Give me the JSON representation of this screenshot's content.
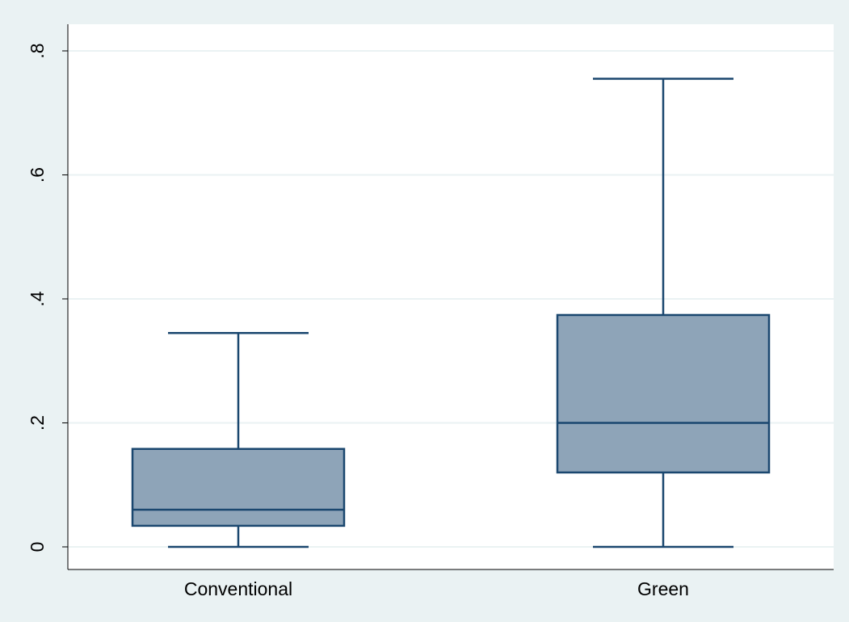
{
  "chart_data": {
    "type": "box",
    "title": "",
    "xlabel": "",
    "ylabel": "",
    "ylim": [
      0,
      0.84
    ],
    "y_ticks": [
      0,
      0.2,
      0.4,
      0.6,
      0.8
    ],
    "y_tick_labels": [
      "0",
      ".2",
      ".4",
      ".6",
      ".8"
    ],
    "categories": [
      "Conventional",
      "Green"
    ],
    "boxes": [
      {
        "category": "Conventional",
        "whisker_low": 0.0,
        "q1": 0.034,
        "median": 0.06,
        "q3": 0.158,
        "whisker_high": 0.345
      },
      {
        "category": "Green",
        "whisker_low": 0.0,
        "q1": 0.12,
        "median": 0.2,
        "q3": 0.374,
        "whisker_high": 0.755
      }
    ],
    "grid": true,
    "legend": "none",
    "colors": {
      "outer_background": "#eaf2f3",
      "plot_background": "#ffffff",
      "gridline": "#eaf2f3",
      "box_fill": "#8ea4b8",
      "box_stroke": "#1a476f",
      "axis": "#000000"
    }
  }
}
